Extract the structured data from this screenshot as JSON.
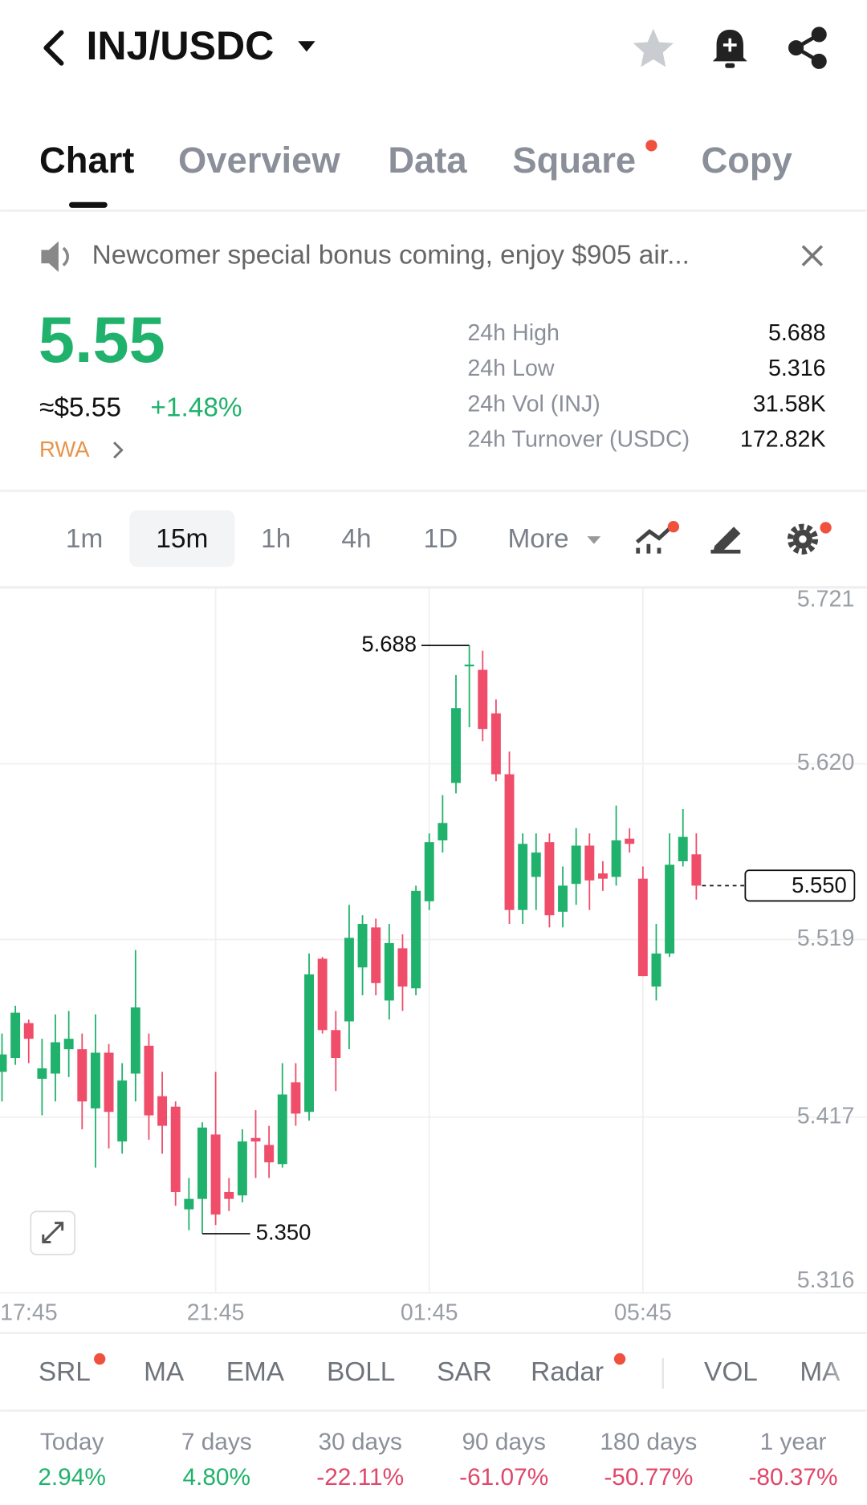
{
  "header": {
    "pair": "INJ/USDC"
  },
  "tabs": [
    "Chart",
    "Overview",
    "Data",
    "Square",
    "Copy"
  ],
  "banner": "Newcomer special bonus coming, enjoy $905 air...",
  "price": {
    "last": "5.55",
    "usd": "≈$5.55",
    "change": "+1.48%",
    "tag": "RWA"
  },
  "stats": [
    {
      "label": "24h High",
      "value": "5.688"
    },
    {
      "label": "24h Low",
      "value": "5.316"
    },
    {
      "label": "24h Vol (INJ)",
      "value": "31.58K"
    },
    {
      "label": "24h Turnover (USDC)",
      "value": "172.82K"
    }
  ],
  "timeframes": [
    "1m",
    "15m",
    "1h",
    "4h",
    "1D",
    "More"
  ],
  "chart_data": {
    "type": "candlestick",
    "up_color": "#20b26c",
    "down_color": "#ef4d6a",
    "categories": [
      "17:45",
      null,
      null,
      null,
      null,
      null,
      null,
      null,
      null,
      null,
      null,
      null,
      null,
      null,
      null,
      null,
      "21:45",
      null,
      null,
      null,
      null,
      null,
      null,
      null,
      null,
      null,
      null,
      null,
      null,
      null,
      null,
      null,
      "01:45",
      null,
      null,
      null,
      null,
      null,
      null,
      null,
      null,
      null,
      null,
      null,
      null,
      null,
      null,
      null,
      "05:45",
      null,
      null,
      null,
      null
    ],
    "open": [
      5.443,
      5.451,
      5.471,
      5.439,
      5.442,
      5.456,
      5.456,
      5.422,
      5.454,
      5.403,
      5.442,
      5.458,
      5.429,
      5.423,
      5.364,
      5.37,
      5.407,
      5.374,
      5.372,
      5.405,
      5.401,
      5.39,
      5.437,
      5.42,
      5.508,
      5.467,
      5.472,
      5.503,
      5.526,
      5.484,
      5.514,
      5.491,
      5.541,
      5.576,
      5.609,
      5.676,
      5.674,
      5.649,
      5.614,
      5.536,
      5.555,
      5.575,
      5.535,
      5.551,
      5.573,
      5.557,
      5.555,
      5.577,
      5.554,
      5.492,
      5.511,
      5.564,
      5.568
    ],
    "high": [
      5.465,
      5.481,
      5.473,
      5.462,
      5.476,
      5.478,
      5.465,
      5.476,
      5.459,
      5.448,
      5.513,
      5.465,
      5.443,
      5.426,
      5.382,
      5.414,
      5.443,
      5.382,
      5.41,
      5.421,
      5.412,
      5.448,
      5.448,
      5.511,
      5.509,
      5.478,
      5.539,
      5.533,
      5.531,
      5.528,
      5.522,
      5.55,
      5.58,
      5.602,
      5.671,
      5.688,
      5.685,
      5.657,
      5.627,
      5.58,
      5.58,
      5.58,
      5.561,
      5.583,
      5.58,
      5.564,
      5.596,
      5.583,
      5.561,
      5.528,
      5.58,
      5.594,
      5.58
    ],
    "low": [
      5.426,
      5.447,
      5.448,
      5.418,
      5.426,
      5.44,
      5.41,
      5.388,
      5.399,
      5.396,
      5.426,
      5.404,
      5.396,
      5.366,
      5.352,
      5.35,
      5.355,
      5.363,
      5.368,
      5.382,
      5.382,
      5.388,
      5.412,
      5.415,
      5.465,
      5.432,
      5.456,
      5.487,
      5.487,
      5.473,
      5.478,
      5.487,
      5.536,
      5.569,
      5.603,
      5.641,
      5.633,
      5.61,
      5.528,
      5.528,
      5.536,
      5.526,
      5.526,
      5.539,
      5.536,
      5.547,
      5.55,
      5.569,
      5.498,
      5.484,
      5.509,
      5.561,
      5.542
    ],
    "close": [
      5.453,
      5.477,
      5.462,
      5.445,
      5.46,
      5.462,
      5.426,
      5.454,
      5.42,
      5.438,
      5.48,
      5.418,
      5.412,
      5.374,
      5.37,
      5.411,
      5.361,
      5.37,
      5.403,
      5.403,
      5.391,
      5.43,
      5.419,
      5.499,
      5.467,
      5.451,
      5.52,
      5.528,
      5.494,
      5.517,
      5.492,
      5.547,
      5.575,
      5.586,
      5.652,
      5.677,
      5.64,
      5.614,
      5.536,
      5.574,
      5.569,
      5.533,
      5.55,
      5.573,
      5.553,
      5.554,
      5.576,
      5.574,
      5.498,
      5.511,
      5.562,
      5.578,
      5.55
    ],
    "ylim": [
      5.316,
      5.721
    ],
    "yticks": [
      5.721,
      {
        "value": 5.62,
        "label": "5.620"
      },
      5.519,
      5.417,
      5.316
    ],
    "grid": true,
    "high_marker": {
      "value": 5.688,
      "label": "5.688"
    },
    "low_marker": {
      "value": 5.35,
      "label": "5.350"
    },
    "last_price": {
      "value": 5.55,
      "label": "5.550"
    }
  },
  "indicators": [
    "SRL",
    "MA",
    "EMA",
    "BOLL",
    "SAR",
    "Radar",
    "VOL",
    "MA"
  ],
  "performance": [
    {
      "period": "Today",
      "change": "2.94%"
    },
    {
      "period": "7 days",
      "change": "4.80%"
    },
    {
      "period": "30 days",
      "change": "-22.11%"
    },
    {
      "period": "90 days",
      "change": "-61.07%"
    },
    {
      "period": "180 days",
      "change": "-50.77%"
    },
    {
      "period": "1 year",
      "change": "-80.37%"
    }
  ]
}
